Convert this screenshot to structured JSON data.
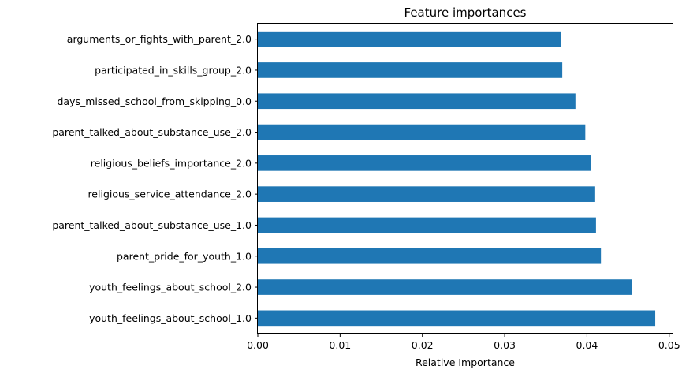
{
  "chart_data": {
    "type": "bar",
    "orientation": "horizontal",
    "title": "Feature importances",
    "xlabel": "Relative Importance",
    "ylabel": "",
    "xlim": [
      0,
      0.0505
    ],
    "xticks": [
      0.0,
      0.01,
      0.02,
      0.03,
      0.04,
      0.05
    ],
    "xtick_labels": [
      "0.00",
      "0.01",
      "0.02",
      "0.03",
      "0.04",
      "0.05"
    ],
    "grid": false,
    "bar_color": "#1f77b4",
    "categories": [
      "arguments_or_fights_with_parent_2.0",
      "participated_in_skills_group_2.0",
      "days_missed_school_from_skipping_0.0",
      "parent_talked_about_substance_use_2.0",
      "religious_beliefs_importance_2.0",
      "religious_service_attendance_2.0",
      "parent_talked_about_substance_use_1.0",
      "parent_pride_for_youth_1.0",
      "youth_feelings_about_school_2.0",
      "youth_feelings_about_school_1.0"
    ],
    "values": [
      0.0368,
      0.037,
      0.0386,
      0.0398,
      0.0405,
      0.041,
      0.0411,
      0.0417,
      0.0455,
      0.0483
    ]
  }
}
